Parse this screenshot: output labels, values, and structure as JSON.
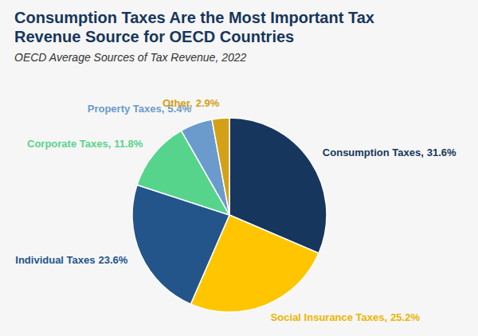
{
  "chart_data": {
    "type": "pie",
    "title": "Consumption Taxes Are the Most Important Tax Revenue Source for OECD Countries",
    "subtitle": "OECD Average Sources of Tax Revenue, 2022",
    "categories": [
      "Consumption Taxes,",
      "Social Insurance Taxes,",
      "Individual Taxes",
      "Corporate Taxes,",
      "Property Taxes,",
      "Other,"
    ],
    "values": [
      31.6,
      25.2,
      23.6,
      11.8,
      5.4,
      2.9
    ],
    "value_labels": [
      "31.6%",
      "25.2%",
      "23.6%",
      "11.8%",
      "5.4%",
      "2.9%"
    ],
    "colors": [
      "#17365d",
      "#ffc600",
      "#23558a",
      "#56d48c",
      "#6a9bcc",
      "#d4a017"
    ],
    "data_labels": true
  }
}
